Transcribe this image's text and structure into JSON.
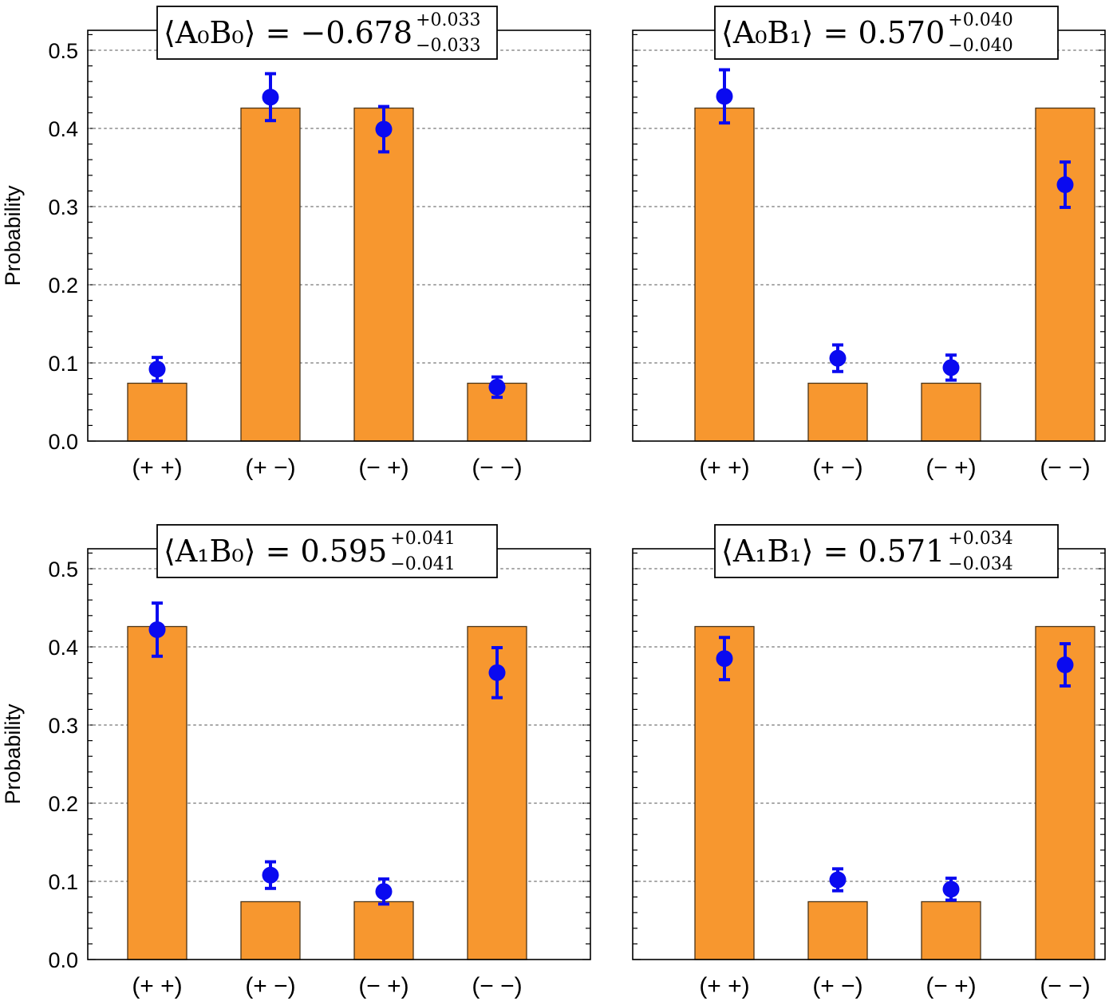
{
  "chart_data": [
    {
      "type": "bar",
      "title": {
        "lhs": "⟨A₀B₀⟩",
        "value": "−0.678",
        "upper": "+0.033",
        "lower": "−0.033"
      },
      "categories": [
        "(+ +)",
        "(+ −)",
        "(− +)",
        "(− −)"
      ],
      "series": [
        {
          "kind": "bar",
          "color": "#f7972f",
          "values": [
            0.074,
            0.426,
            0.426,
            0.074
          ]
        },
        {
          "kind": "errorbar",
          "color": "#0a0af0",
          "values": [
            0.092,
            0.44,
            0.399,
            0.069
          ],
          "err_low": [
            0.015,
            0.03,
            0.029,
            0.013
          ],
          "err_high": [
            0.015,
            0.03,
            0.029,
            0.013
          ]
        }
      ],
      "ylabel": "Probability",
      "ylim": [
        0,
        0.5
      ],
      "yticks": [
        "0.0",
        "0.1",
        "0.2",
        "0.3",
        "0.4",
        "0.5"
      ],
      "grid": "horizontal-dotted"
    },
    {
      "type": "bar",
      "title": {
        "lhs": "⟨A₀B₁⟩",
        "value": "0.570",
        "upper": "+0.040",
        "lower": "−0.040"
      },
      "categories": [
        "(+ +)",
        "(+ −)",
        "(− +)",
        "(− −)"
      ],
      "series": [
        {
          "kind": "bar",
          "color": "#f7972f",
          "values": [
            0.426,
            0.074,
            0.074,
            0.426
          ]
        },
        {
          "kind": "errorbar",
          "color": "#0a0af0",
          "values": [
            0.441,
            0.106,
            0.094,
            0.328
          ],
          "err_low": [
            0.034,
            0.017,
            0.016,
            0.029
          ],
          "err_high": [
            0.034,
            0.017,
            0.016,
            0.029
          ]
        }
      ],
      "ylabel": "",
      "ylim": [
        0,
        0.5
      ],
      "yticks": [],
      "grid": "horizontal-dotted"
    },
    {
      "type": "bar",
      "title": {
        "lhs": "⟨A₁B₀⟩",
        "value": "0.595",
        "upper": "+0.041",
        "lower": "−0.041"
      },
      "categories": [
        "(+ +)",
        "(+ −)",
        "(− +)",
        "(− −)"
      ],
      "series": [
        {
          "kind": "bar",
          "color": "#f7972f",
          "values": [
            0.426,
            0.074,
            0.074,
            0.426
          ]
        },
        {
          "kind": "errorbar",
          "color": "#0a0af0",
          "values": [
            0.422,
            0.108,
            0.087,
            0.367
          ],
          "err_low": [
            0.034,
            0.017,
            0.016,
            0.032
          ],
          "err_high": [
            0.034,
            0.017,
            0.016,
            0.032
          ]
        }
      ],
      "ylabel": "Probability",
      "ylim": [
        0,
        0.5
      ],
      "yticks": [
        "0.0",
        "0.1",
        "0.2",
        "0.3",
        "0.4",
        "0.5"
      ],
      "grid": "horizontal-dotted"
    },
    {
      "type": "bar",
      "title": {
        "lhs": "⟨A₁B₁⟩",
        "value": "0.571",
        "upper": "+0.034",
        "lower": "−0.034"
      },
      "categories": [
        "(+ +)",
        "(+ −)",
        "(− +)",
        "(− −)"
      ],
      "series": [
        {
          "kind": "bar",
          "color": "#f7972f",
          "values": [
            0.426,
            0.074,
            0.074,
            0.426
          ]
        },
        {
          "kind": "errorbar",
          "color": "#0a0af0",
          "values": [
            0.385,
            0.102,
            0.09,
            0.377
          ],
          "err_low": [
            0.027,
            0.014,
            0.014,
            0.027
          ],
          "err_high": [
            0.027,
            0.014,
            0.014,
            0.027
          ]
        }
      ],
      "ylabel": "",
      "ylim": [
        0,
        0.5
      ],
      "yticks": [],
      "grid": "horizontal-dotted"
    }
  ]
}
